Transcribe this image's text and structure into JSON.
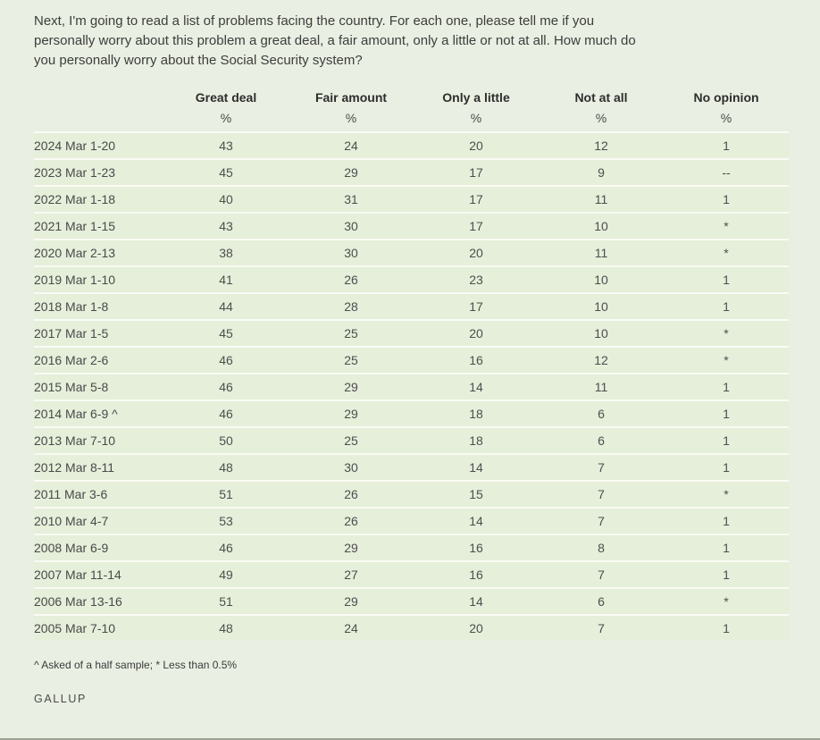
{
  "colors": {
    "page_bg": "#e9efe2",
    "row_bg": "#e5efda",
    "row_separator": "#f9fbf4",
    "bottom_border": "#9ba294",
    "header_text": "#2d2d2d",
    "body_text": "#4e4e4e"
  },
  "chart_data": {
    "type": "table",
    "title": "Next, I'm going to read a list of problems facing the country. For each one, please tell me if you personally worry about this problem a great deal, a fair amount, only a little or not at all. How much do you personally worry about the Social Security system?",
    "columns": [
      "Great deal",
      "Fair amount",
      "Only a little",
      "Not at all",
      "No opinion"
    ],
    "percent_sign": "%",
    "rows": [
      {
        "date": "2024 Mar 1-20",
        "values": [
          "43",
          "24",
          "20",
          "12",
          "1"
        ]
      },
      {
        "date": "2023 Mar 1-23",
        "values": [
          "45",
          "29",
          "17",
          "9",
          "--"
        ]
      },
      {
        "date": "2022 Mar 1-18",
        "values": [
          "40",
          "31",
          "17",
          "11",
          "1"
        ]
      },
      {
        "date": "2021 Mar 1-15",
        "values": [
          "43",
          "30",
          "17",
          "10",
          "*"
        ]
      },
      {
        "date": "2020 Mar 2-13",
        "values": [
          "38",
          "30",
          "20",
          "11",
          "*"
        ]
      },
      {
        "date": "2019 Mar 1-10",
        "values": [
          "41",
          "26",
          "23",
          "10",
          "1"
        ]
      },
      {
        "date": "2018 Mar 1-8",
        "values": [
          "44",
          "28",
          "17",
          "10",
          "1"
        ]
      },
      {
        "date": "2017 Mar 1-5",
        "values": [
          "45",
          "25",
          "20",
          "10",
          "*"
        ]
      },
      {
        "date": "2016 Mar 2-6",
        "values": [
          "46",
          "25",
          "16",
          "12",
          "*"
        ]
      },
      {
        "date": "2015 Mar 5-8",
        "values": [
          "46",
          "29",
          "14",
          "11",
          "1"
        ]
      },
      {
        "date": "2014 Mar 6-9 ^",
        "values": [
          "46",
          "29",
          "18",
          "6",
          "1"
        ]
      },
      {
        "date": "2013 Mar 7-10",
        "values": [
          "50",
          "25",
          "18",
          "6",
          "1"
        ]
      },
      {
        "date": "2012 Mar 8-11",
        "values": [
          "48",
          "30",
          "14",
          "7",
          "1"
        ]
      },
      {
        "date": "2011 Mar 3-6",
        "values": [
          "51",
          "26",
          "15",
          "7",
          "*"
        ]
      },
      {
        "date": "2010 Mar 4-7",
        "values": [
          "53",
          "26",
          "14",
          "7",
          "1"
        ]
      },
      {
        "date": "2008 Mar 6-9",
        "values": [
          "46",
          "29",
          "16",
          "8",
          "1"
        ]
      },
      {
        "date": "2007 Mar 11-14",
        "values": [
          "49",
          "27",
          "16",
          "7",
          "1"
        ]
      },
      {
        "date": "2006 Mar 13-16",
        "values": [
          "51",
          "29",
          "14",
          "6",
          "*"
        ]
      },
      {
        "date": "2005 Mar 7-10",
        "values": [
          "48",
          "24",
          "20",
          "7",
          "1"
        ]
      }
    ],
    "footnote": "^ Asked of a half sample; * Less than 0.5%",
    "source": "GALLUP"
  }
}
